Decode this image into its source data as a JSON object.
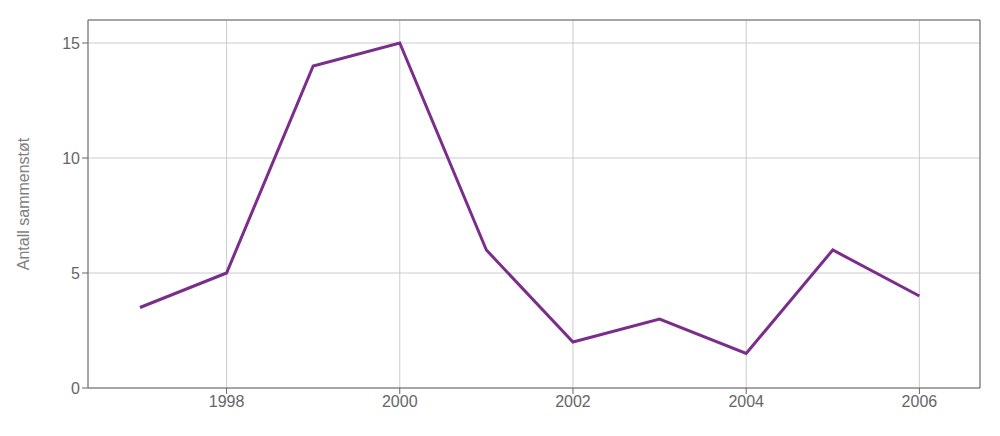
{
  "chart_data": {
    "type": "line",
    "x": [
      1997,
      1998,
      1999,
      2000,
      2001,
      2002,
      2003,
      2004,
      2005,
      2006
    ],
    "values": [
      3.5,
      5,
      14,
      15,
      6,
      2,
      3,
      1.5,
      6,
      4
    ],
    "color": "#7B2D8B",
    "ylabel": "Antall sammenstøt",
    "xlim": [
      1996.4,
      2006.7
    ],
    "xticks": [
      1998,
      2000,
      2002,
      2004,
      2006
    ],
    "ylim": [
      0,
      16
    ],
    "yticks": [
      0,
      5,
      10,
      15
    ],
    "grid": true
  }
}
